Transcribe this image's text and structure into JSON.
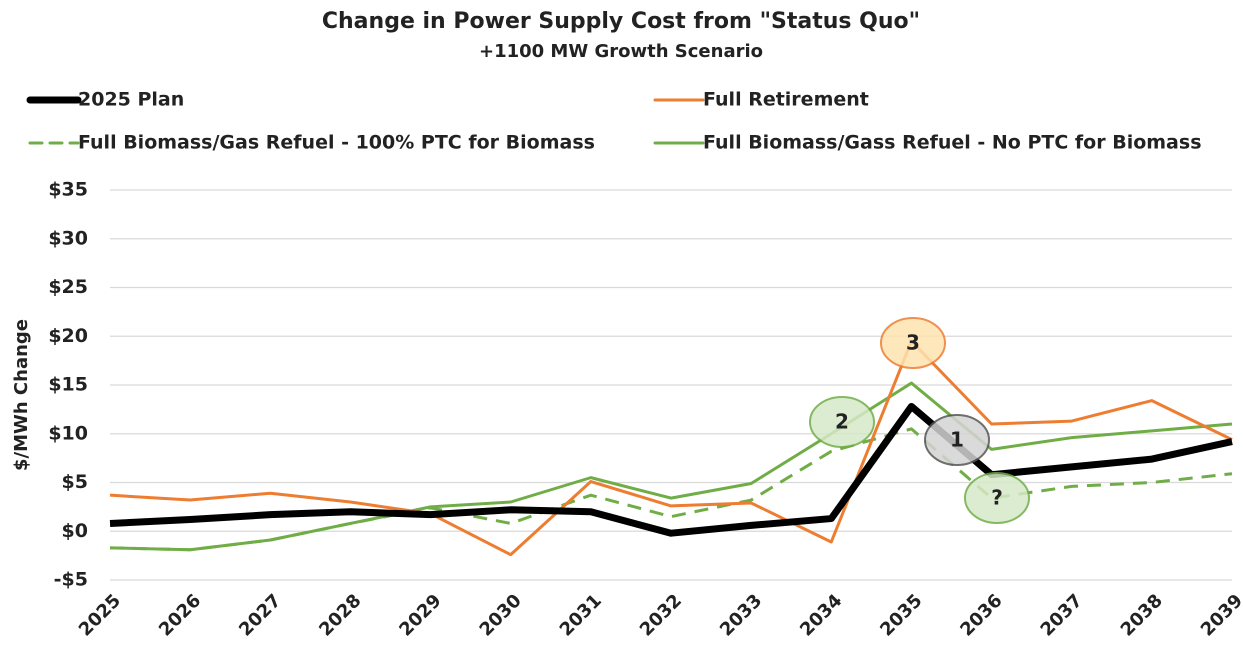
{
  "chart_data": {
    "type": "line",
    "title": "Change in Power Supply Cost from \"Status Quo\"",
    "subtitle": "+1100 MW Growth Scenario",
    "y_label": "$/MWh Change",
    "categories": [
      "2025",
      "2026",
      "2027",
      "2028",
      "2029",
      "2030",
      "2031",
      "2032",
      "2033",
      "2034",
      "2035",
      "2036",
      "2037",
      "2038",
      "2039"
    ],
    "series": [
      {
        "name": "2025 Plan",
        "color": "#000000",
        "style": "solid",
        "width": 7,
        "values": [
          0.8,
          1.2,
          1.7,
          2.0,
          1.7,
          2.2,
          2.0,
          -0.2,
          0.6,
          1.3,
          12.8,
          5.8,
          6.6,
          7.4,
          9.2
        ]
      },
      {
        "name": "Full Retirement",
        "color": "#ed7d31",
        "style": "solid",
        "width": 3,
        "values": [
          3.7,
          3.2,
          3.9,
          3.0,
          1.8,
          -2.4,
          5.1,
          2.6,
          2.9,
          -1.1,
          19.5,
          11.0,
          11.3,
          13.4,
          9.4
        ]
      },
      {
        "name": "Full Biomass/Gas Refuel - 100% PTC for Biomass",
        "color": "#70ad47",
        "style": "dashed",
        "width": 3,
        "values": [
          -1.7,
          -1.9,
          -0.9,
          0.8,
          2.4,
          0.8,
          3.7,
          1.5,
          3.2,
          8.2,
          10.5,
          3.4,
          4.6,
          5.0,
          5.9
        ]
      },
      {
        "name": "Full Biomass/Gass Refuel - No PTC for Biomass",
        "color": "#70ad47",
        "style": "solid",
        "width": 3,
        "values": [
          -1.7,
          -1.9,
          -0.9,
          0.8,
          2.5,
          3.0,
          5.5,
          3.4,
          4.9,
          10.0,
          15.2,
          8.4,
          9.6,
          10.3,
          11.0
        ]
      }
    ],
    "ylim": [
      -5,
      35
    ],
    "yticks": [
      {
        "value": -5,
        "label": "-$5"
      },
      {
        "value": 0,
        "label": "$0"
      },
      {
        "value": 5,
        "label": "$5"
      },
      {
        "value": 10,
        "label": "$10"
      },
      {
        "value": 15,
        "label": "$15"
      },
      {
        "value": 20,
        "label": "$20"
      },
      {
        "value": 25,
        "label": "$25"
      },
      {
        "value": 30,
        "label": "$30"
      },
      {
        "value": 35,
        "label": "$35"
      }
    ],
    "grid": true,
    "legend": "top",
    "annotations": [
      {
        "label": "3"
      },
      {
        "label": "2"
      },
      {
        "label": "1"
      },
      {
        "label": "?"
      }
    ]
  }
}
